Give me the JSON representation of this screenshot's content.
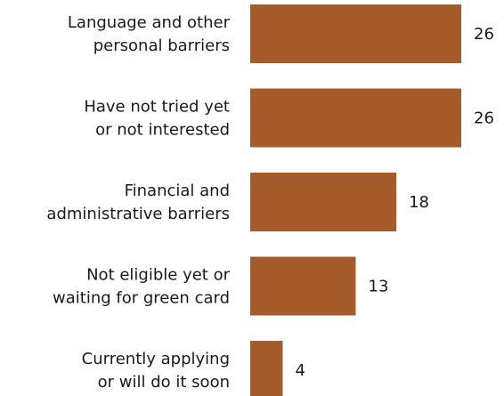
{
  "chart_data": {
    "type": "bar",
    "orientation": "horizontal",
    "categories": [
      [
        "Language and other",
        "personal barriers"
      ],
      [
        "Have not tried yet",
        "or not interested"
      ],
      [
        "Financial and",
        "administrative barriers"
      ],
      [
        "Not eligible yet or",
        "waiting for green card"
      ],
      [
        "Currently applying",
        "or will do it soon"
      ]
    ],
    "values": [
      26,
      26,
      18,
      13,
      4
    ],
    "data_labels": [
      "26",
      "26",
      "18",
      "13",
      "4"
    ],
    "title": "",
    "xlabel": "",
    "ylabel": "",
    "xlim": [
      0,
      26
    ],
    "grid": false,
    "legend": "none",
    "colors": {
      "bar": "#a65c2a",
      "text": "#1a1a1a"
    }
  }
}
